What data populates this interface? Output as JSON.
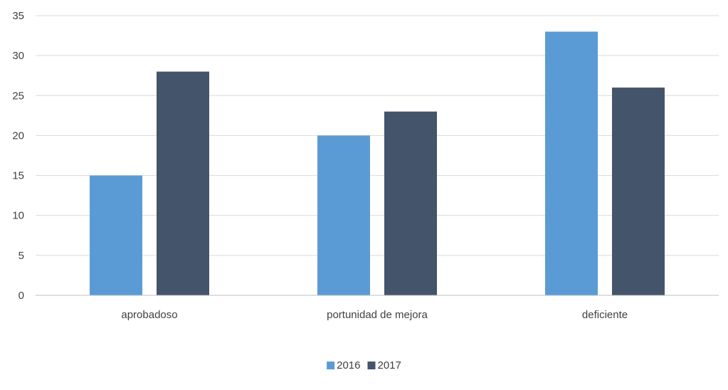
{
  "chart_data": {
    "type": "bar",
    "categories": [
      "aprobadoso",
      "portunidad de mejora",
      "deficiente"
    ],
    "series": [
      {
        "name": "2016",
        "values": [
          15,
          20,
          33
        ],
        "color": "#5b9bd5"
      },
      {
        "name": "2017",
        "values": [
          28,
          23,
          26
        ],
        "color": "#44546a"
      }
    ],
    "ylim": [
      0,
      35
    ],
    "yticks": [
      0,
      5,
      10,
      15,
      20,
      25,
      30,
      35
    ],
    "grid": true,
    "gridColor": "#d9d9d9",
    "axisColor": "#bfbfbf",
    "legend_position": "bottom",
    "title": "",
    "xlabel": "",
    "ylabel": ""
  }
}
